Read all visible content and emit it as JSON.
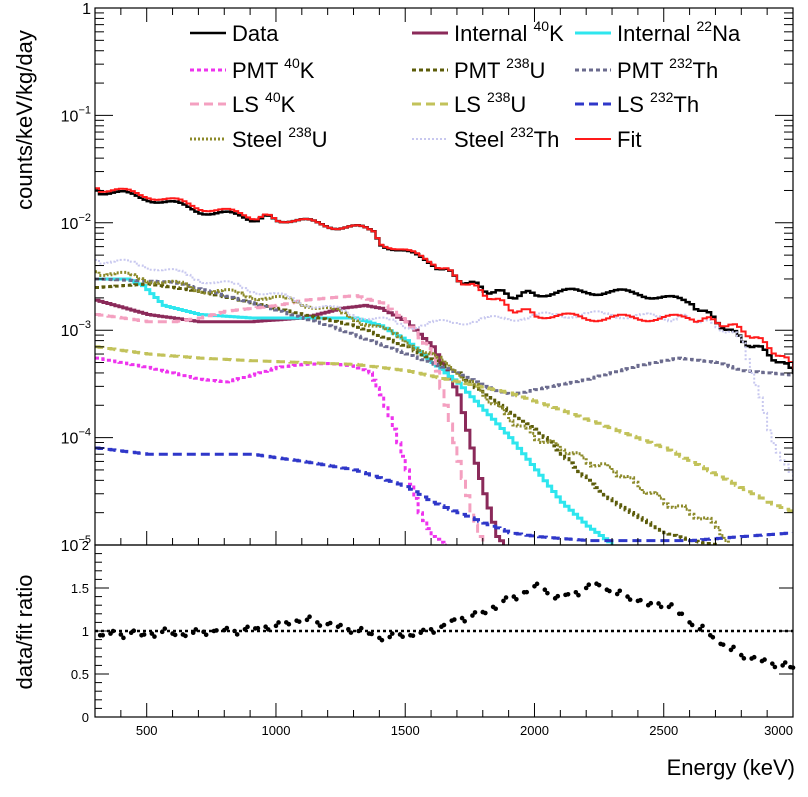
{
  "chart_data": [
    {
      "type": "line",
      "panel": "top",
      "title": "",
      "ylabel": "counts/keV/kg/day",
      "xlabel": "",
      "xlim": [
        300,
        3000
      ],
      "ylim": [
        1e-05,
        1
      ],
      "y_scale": "log",
      "y_tick_labels": [
        {
          "base": "1",
          "exp": "",
          "v": 1
        },
        {
          "base": "10",
          "exp": "−1",
          "v": 0.1
        },
        {
          "base": "10",
          "exp": "−2",
          "v": 0.01
        },
        {
          "base": "10",
          "exp": "−3",
          "v": 0.001
        },
        {
          "base": "10",
          "exp": "−4",
          "v": 0.0001
        },
        {
          "base": "10",
          "exp": "−5",
          "v": 1e-05
        }
      ],
      "legend_position": "top",
      "series": [
        {
          "name": "Data",
          "parts": [
            "Data",
            "",
            ""
          ],
          "color": "#000000",
          "dash": "",
          "width": 2.5,
          "x": [
            300,
            500,
            700,
            900,
            1000,
            1200,
            1370,
            1400,
            1600,
            1700,
            1800,
            1900,
            2000,
            2200,
            2400,
            2600,
            2700,
            2800,
            2900,
            3000
          ],
          "y": [
            0.02,
            0.017,
            0.013,
            0.011,
            0.011,
            0.0095,
            0.0085,
            0.0065,
            0.0042,
            0.003,
            0.0024,
            0.0021,
            0.0022,
            0.0023,
            0.0022,
            0.0018,
            0.0012,
            0.0008,
            0.0006,
            0.0004
          ]
        },
        {
          "name": "Internal 40K",
          "parts": [
            "Internal ",
            "40",
            "K"
          ],
          "color": "#8b2a5a",
          "dash": "",
          "width": 3,
          "x": [
            300,
            500,
            700,
            900,
            1100,
            1250,
            1340,
            1400,
            1500,
            1600,
            1700,
            1750,
            1800,
            1850,
            1880
          ],
          "y": [
            0.0019,
            0.0014,
            0.0012,
            0.0012,
            0.0013,
            0.0016,
            0.0017,
            0.0016,
            0.0012,
            0.0007,
            0.00025,
            8e-05,
            3e-05,
            1.2e-05,
            1e-05
          ]
        },
        {
          "name": "Internal 22Na",
          "parts": [
            "Internal ",
            "22",
            "Na"
          ],
          "color": "#2ee6ee",
          "dash": "",
          "width": 3,
          "x": [
            300,
            420,
            480,
            560,
            700,
            900,
            1100,
            1300,
            1400,
            1500,
            1600,
            1700,
            1800,
            1900,
            2000,
            2100,
            2200,
            2300
          ],
          "y": [
            0.003,
            0.003,
            0.0026,
            0.0017,
            0.0014,
            0.0013,
            0.0013,
            0.0013,
            0.0011,
            0.0008,
            0.0005,
            0.00032,
            0.00018,
            0.0001,
            5e-05,
            2.5e-05,
            1.5e-05,
            1e-05
          ]
        },
        {
          "name": "PMT 40K",
          "parts": [
            "PMT ",
            "40",
            "K"
          ],
          "color": "#ee33ee",
          "dash": "4,3",
          "width": 3,
          "x": [
            300,
            500,
            700,
            800,
            900,
            1000,
            1100,
            1200,
            1300,
            1360,
            1400,
            1450,
            1500,
            1550,
            1600,
            1650,
            1660
          ],
          "y": [
            0.00055,
            0.00045,
            0.00035,
            0.00033,
            0.00038,
            0.00045,
            0.00048,
            0.00049,
            0.00046,
            0.0004,
            0.00025,
            0.00012,
            5e-05,
            2e-05,
            1.2e-05,
            1e-05,
            1e-05
          ]
        },
        {
          "name": "PMT 238U",
          "parts": [
            "PMT ",
            "238",
            "U"
          ],
          "color": "#5c5c0a",
          "dash": "4,3",
          "width": 3,
          "x": [
            300,
            500,
            700,
            900,
            1100,
            1300,
            1500,
            1700,
            1800,
            2000,
            2100,
            2200,
            2300,
            2400,
            2500,
            2600,
            2700
          ],
          "y": [
            0.0025,
            0.0027,
            0.0023,
            0.0018,
            0.0014,
            0.0011,
            0.0007,
            0.0004,
            0.00025,
            0.00012,
            7e-05,
            4e-05,
            2.5e-05,
            1.8e-05,
            1.3e-05,
            1.1e-05,
            1e-05
          ]
        },
        {
          "name": "PMT 232Th",
          "parts": [
            "PMT ",
            "232",
            "Th"
          ],
          "color": "#6b6b8e",
          "dash": "4,3",
          "width": 3,
          "x": [
            300,
            600,
            900,
            1200,
            1500,
            1700,
            1800,
            1900,
            2000,
            2200,
            2400,
            2550,
            2700,
            2800,
            2900,
            3000
          ],
          "y": [
            0.003,
            0.0028,
            0.0018,
            0.0011,
            0.0006,
            0.0004,
            0.0003,
            0.00025,
            0.00028,
            0.00035,
            0.00047,
            0.00055,
            0.0005,
            0.00042,
            0.0004,
            0.00038
          ]
        },
        {
          "name": "LS 40K",
          "parts": [
            "LS ",
            "40",
            "K"
          ],
          "color": "#f4a0c0",
          "dash": "9,5",
          "width": 3,
          "x": [
            300,
            400,
            500,
            600,
            700,
            800,
            1000,
            1100,
            1200,
            1300,
            1400,
            1500,
            1600,
            1650,
            1700,
            1750,
            1780,
            1800
          ],
          "y": [
            0.0014,
            0.0013,
            0.0012,
            0.0012,
            0.0013,
            0.0015,
            0.0017,
            0.0019,
            0.002,
            0.0021,
            0.0018,
            0.0012,
            0.0006,
            0.0002,
            6e-05,
            2e-05,
            1.2e-05,
            1e-05
          ]
        },
        {
          "name": "LS 238U",
          "parts": [
            "LS ",
            "238",
            "U"
          ],
          "color": "#c2c25a",
          "dash": "9,5",
          "width": 3,
          "x": [
            300,
            500,
            700,
            900,
            1100,
            1300,
            1500,
            1700,
            1900,
            2100,
            2300,
            2500,
            2700,
            2900,
            3000
          ],
          "y": [
            0.0007,
            0.0006,
            0.00055,
            0.00052,
            0.0005,
            0.00048,
            0.00042,
            0.00033,
            0.00026,
            0.00018,
            0.00012,
            8e-05,
            4.5e-05,
            2.5e-05,
            2e-05
          ]
        },
        {
          "name": "LS 232Th",
          "parts": [
            "LS ",
            "232",
            "Th"
          ],
          "color": "#2f37c9",
          "dash": "9,5",
          "width": 3,
          "x": [
            300,
            500,
            700,
            900,
            1100,
            1300,
            1500,
            1600,
            1700,
            1800,
            1900,
            2000,
            2200,
            2400,
            2600,
            2800,
            3000
          ],
          "y": [
            8e-05,
            7e-05,
            7e-05,
            7e-05,
            6e-05,
            5e-05,
            3.5e-05,
            2.5e-05,
            2e-05,
            1.6e-05,
            1.3e-05,
            1.2e-05,
            1.1e-05,
            1.1e-05,
            1.1e-05,
            1.2e-05,
            1.3e-05
          ]
        },
        {
          "name": "Steel 238U",
          "parts": [
            "Steel ",
            "238",
            "U"
          ],
          "color": "#8c8a2a",
          "dash": "2,2",
          "width": 3,
          "x": [
            300,
            500,
            700,
            900,
            1100,
            1300,
            1500,
            1700,
            1800,
            1900,
            2000,
            2100,
            2200,
            2300,
            2400,
            2500,
            2600,
            2700,
            2750
          ],
          "y": [
            0.0035,
            0.003,
            0.0024,
            0.0021,
            0.0018,
            0.0013,
            0.0008,
            0.0004,
            0.00025,
            0.00015,
            0.0001,
            8e-05,
            6e-05,
            5e-05,
            3.5e-05,
            2.5e-05,
            2e-05,
            1.5e-05,
            1e-05
          ]
        },
        {
          "name": "Steel 232Th",
          "parts": [
            "Steel ",
            "232",
            "Th"
          ],
          "color": "#c8c8ef",
          "dash": "2,2",
          "width": 2,
          "x": [
            300,
            500,
            700,
            900,
            1100,
            1300,
            1500,
            1700,
            1900,
            2100,
            2300,
            2500,
            2600,
            2700,
            2800,
            2850,
            2900,
            2950,
            3000
          ],
          "y": [
            0.0045,
            0.004,
            0.003,
            0.0024,
            0.0018,
            0.0014,
            0.0011,
            0.0012,
            0.0013,
            0.0014,
            0.0014,
            0.0013,
            0.0013,
            0.0011,
            0.0008,
            0.0003,
            0.00012,
            6e-05,
            4e-05
          ]
        },
        {
          "name": "Fit",
          "parts": [
            "Fit",
            "",
            ""
          ],
          "color": "#ff1a1a",
          "dash": "",
          "width": 2,
          "x": [
            300,
            500,
            700,
            900,
            1000,
            1200,
            1370,
            1400,
            1600,
            1700,
            1800,
            1900,
            2000,
            2200,
            2400,
            2600,
            2700,
            2800,
            2900,
            3000
          ],
          "y": [
            0.021,
            0.018,
            0.014,
            0.0115,
            0.011,
            0.0095,
            0.0085,
            0.0066,
            0.0043,
            0.003,
            0.0022,
            0.0016,
            0.0014,
            0.0013,
            0.0013,
            0.0013,
            0.0012,
            0.001,
            0.0007,
            0.00045
          ]
        }
      ]
    },
    {
      "type": "scatter",
      "panel": "bottom",
      "ylabel": "data/fit ratio",
      "xlabel": "Energy (keV)",
      "xlim": [
        300,
        3000
      ],
      "ylim": [
        0,
        2
      ],
      "x_ticks": [
        500,
        1000,
        1500,
        2000,
        2500,
        3000
      ],
      "y_ticks": [
        0,
        0.5,
        1,
        1.5,
        2
      ],
      "reference_line": 1,
      "series": [
        {
          "name": "",
          "color": "#000000",
          "x": [
            320,
            360,
            400,
            440,
            480,
            520,
            560,
            600,
            640,
            680,
            720,
            760,
            800,
            840,
            880,
            920,
            960,
            1000,
            1040,
            1080,
            1120,
            1160,
            1200,
            1240,
            1280,
            1320,
            1360,
            1400,
            1440,
            1480,
            1520,
            1560,
            1600,
            1640,
            1680,
            1720,
            1760,
            1800,
            1840,
            1880,
            1920,
            1960,
            2000,
            2040,
            2080,
            2120,
            2160,
            2200,
            2240,
            2280,
            2320,
            2360,
            2400,
            2440,
            2480,
            2520,
            2560,
            2600,
            2640,
            2680,
            2720,
            2760,
            2800,
            2840,
            2880,
            2920,
            2960,
            2990
          ],
          "y": [
            0.95,
            0.97,
            0.96,
            0.98,
            0.95,
            0.97,
            0.99,
            0.97,
            0.96,
            0.98,
            0.99,
            1.0,
            1.01,
            1.0,
            1.02,
            1.03,
            1.05,
            1.06,
            1.1,
            1.12,
            1.13,
            1.1,
            1.08,
            1.05,
            1.02,
            1.0,
            0.97,
            0.92,
            0.93,
            0.96,
            0.95,
            0.98,
            1.02,
            1.05,
            1.12,
            1.15,
            1.18,
            1.22,
            1.28,
            1.35,
            1.4,
            1.45,
            1.52,
            1.48,
            1.38,
            1.42,
            1.45,
            1.5,
            1.55,
            1.48,
            1.43,
            1.4,
            1.35,
            1.3,
            1.32,
            1.28,
            1.2,
            1.1,
            1.02,
            0.95,
            0.85,
            0.78,
            0.72,
            0.68,
            0.65,
            0.62,
            0.6,
            0.58
          ]
        }
      ]
    }
  ]
}
